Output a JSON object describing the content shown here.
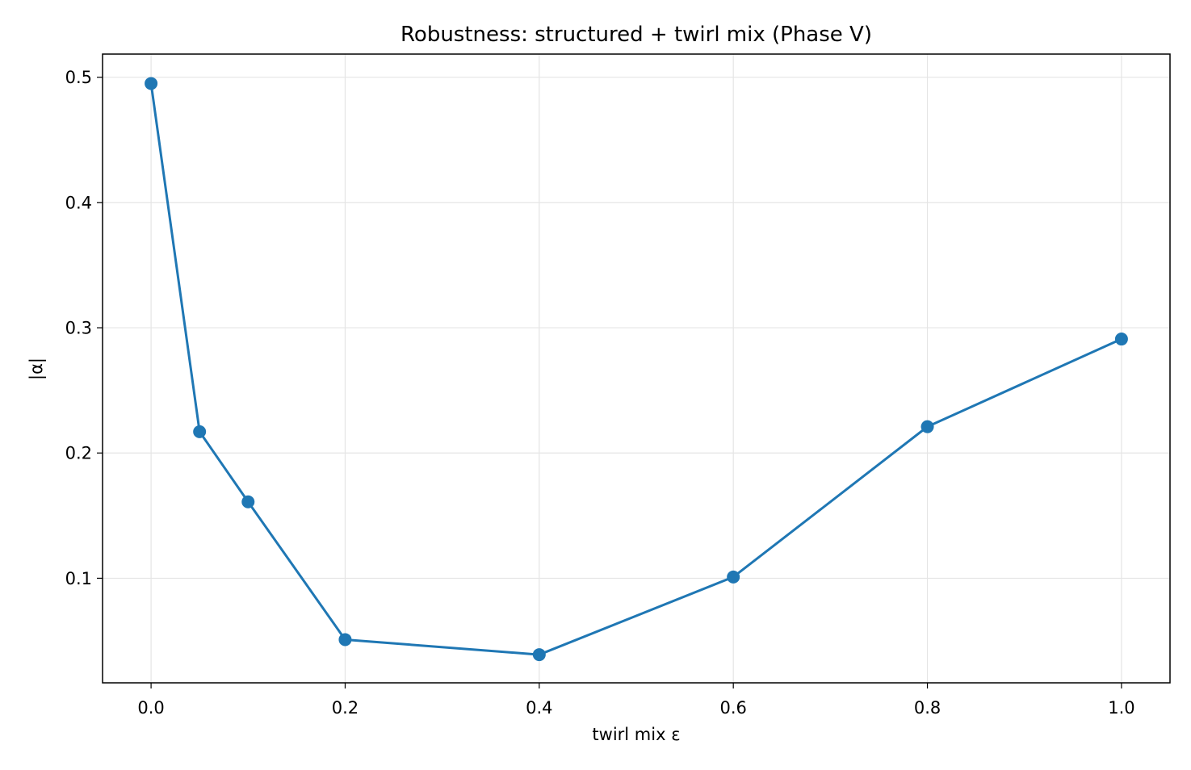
{
  "chart_data": {
    "type": "line",
    "title": "Robustness: structured + twirl mix (Phase V)",
    "xlabel": "twirl mix ε",
    "ylabel": "|α|",
    "x": [
      0.0,
      0.05,
      0.1,
      0.2,
      0.4,
      0.6,
      0.8,
      1.0
    ],
    "series": [
      {
        "values": [
          0.495,
          0.217,
          0.161,
          0.051,
          0.039,
          0.101,
          0.221,
          0.291
        ]
      }
    ],
    "xlim": [
      -0.05,
      1.05
    ],
    "ylim": [
      0.0165,
      0.5185
    ],
    "xticks": [
      "0.0",
      "0.2",
      "0.4",
      "0.6",
      "0.8",
      "1.0"
    ],
    "yticks": [
      "0.1",
      "0.2",
      "0.3",
      "0.4",
      "0.5"
    ],
    "grid": true,
    "legend": false,
    "colors": {
      "series": "#1f77b4",
      "grid": "#e5e5e5",
      "axis": "#000000"
    }
  }
}
